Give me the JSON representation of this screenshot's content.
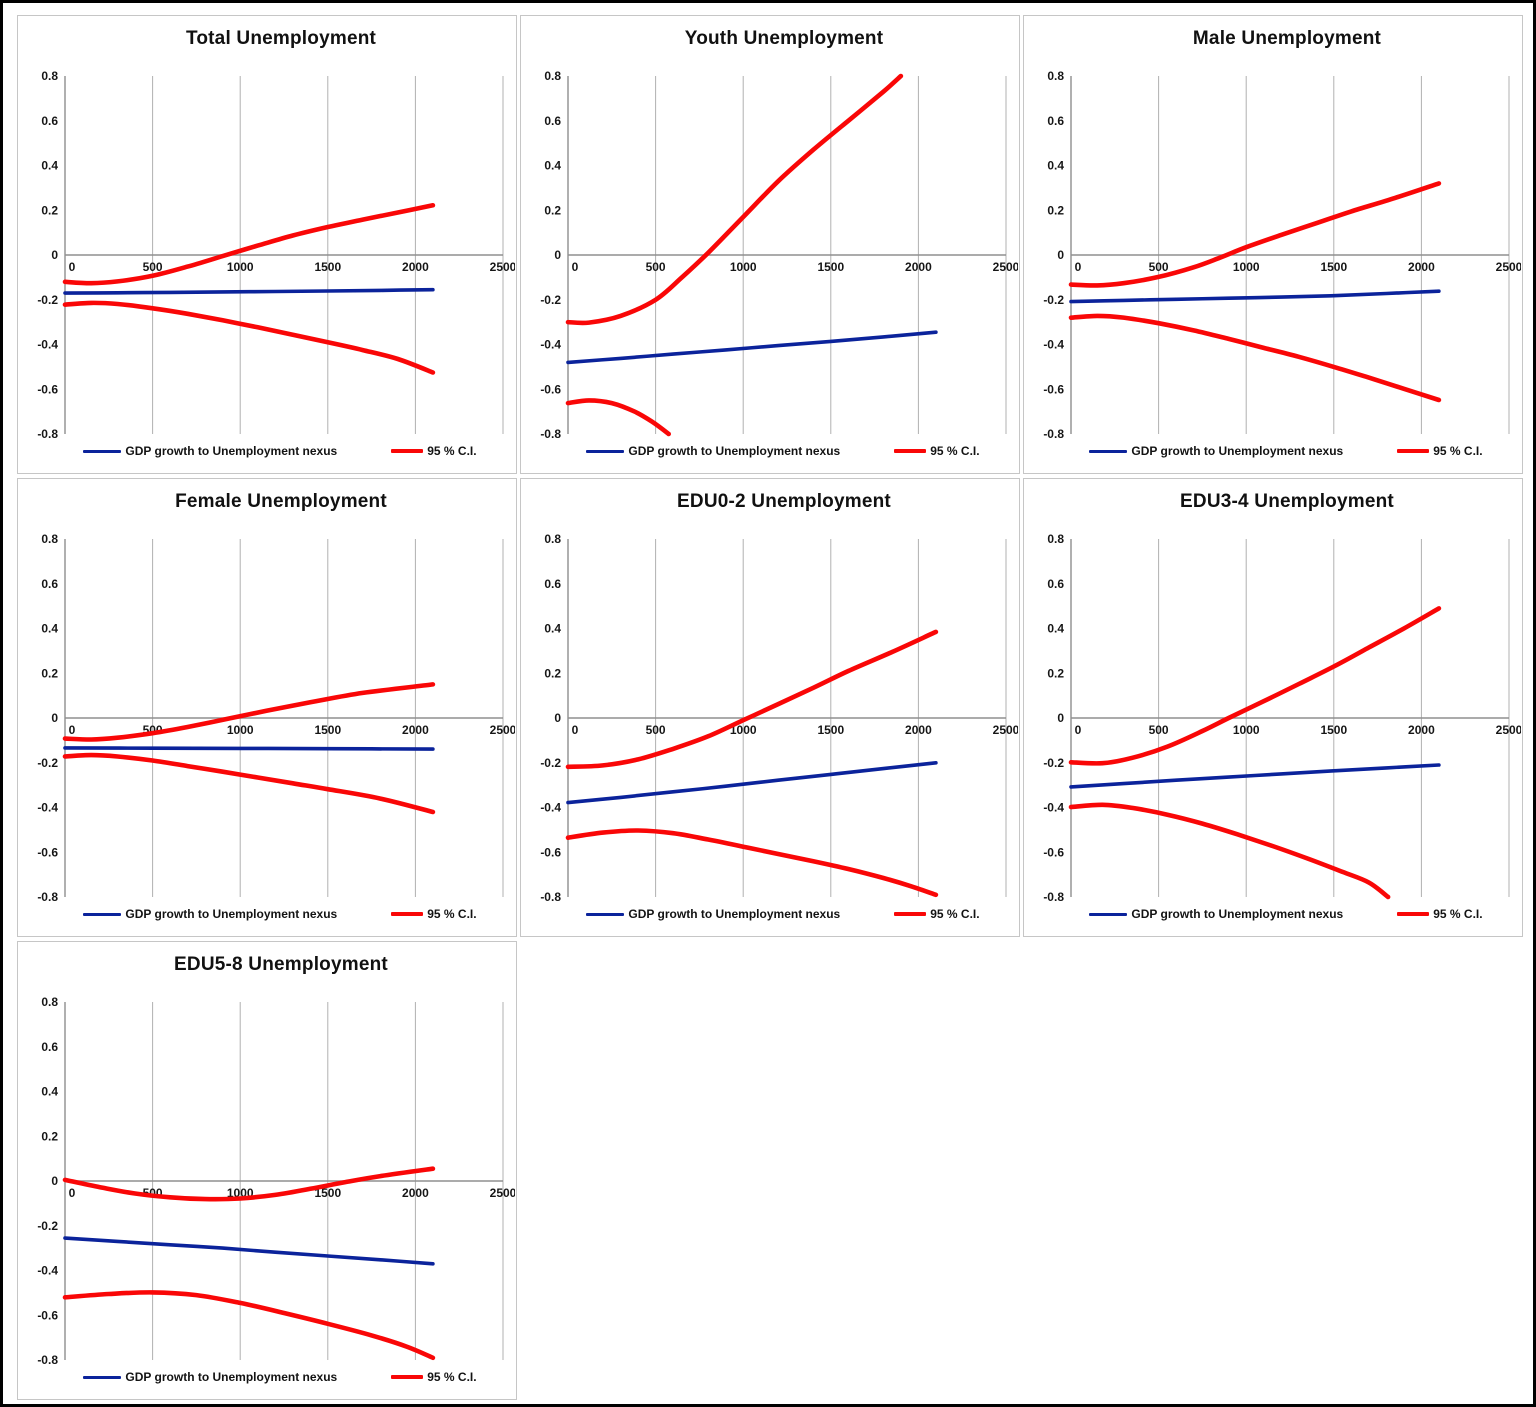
{
  "figure": {
    "legend": {
      "series1": "GDP growth to Unemployment nexus",
      "series2": "95 % C.I."
    },
    "colors": {
      "nexus": "#0b239b",
      "ci": "#f90707",
      "grid": "#b0b0b0",
      "axis": "#8f8f8f"
    },
    "axes": {
      "x_ticks": [
        "0",
        "500",
        "1000",
        "1500",
        "2000",
        "2500"
      ],
      "y_ticks": [
        "0.8",
        "0.6",
        "0.4",
        "0.2",
        "0",
        "-0.2",
        "-0.4",
        "-0.6",
        "-0.8"
      ],
      "xlim": [
        0,
        2500
      ],
      "ylim": [
        -0.8,
        0.8
      ],
      "grid": "vertical"
    }
  },
  "chart_data": [
    {
      "type": "line",
      "title": "Total Unemployment",
      "xlabel": "",
      "ylabel": "",
      "series": [
        {
          "name": "GDP growth to Unemployment nexus",
          "color": "nexus",
          "points": [
            [
              0,
              -0.17
            ],
            [
              300,
              -0.169
            ],
            [
              600,
              -0.167
            ],
            [
              900,
              -0.165
            ],
            [
              1200,
              -0.163
            ],
            [
              1500,
              -0.161
            ],
            [
              1800,
              -0.158
            ],
            [
              2100,
              -0.155
            ]
          ]
        },
        {
          "name": "95 % C.I. upper",
          "color": "ci",
          "points": [
            [
              0,
              -0.12
            ],
            [
              150,
              -0.126
            ],
            [
              300,
              -0.118
            ],
            [
              500,
              -0.093
            ],
            [
              700,
              -0.052
            ],
            [
              900,
              -0.005
            ],
            [
              1100,
              0.042
            ],
            [
              1300,
              0.087
            ],
            [
              1500,
              0.125
            ],
            [
              1700,
              0.158
            ],
            [
              1900,
              0.19
            ],
            [
              2100,
              0.222
            ]
          ]
        },
        {
          "name": "95 % C.I. lower",
          "color": "ci",
          "points": [
            [
              0,
              -0.222
            ],
            [
              150,
              -0.214
            ],
            [
              300,
              -0.219
            ],
            [
              500,
              -0.238
            ],
            [
              700,
              -0.263
            ],
            [
              900,
              -0.292
            ],
            [
              1100,
              -0.323
            ],
            [
              1300,
              -0.356
            ],
            [
              1500,
              -0.39
            ],
            [
              1700,
              -0.425
            ],
            [
              1900,
              -0.465
            ],
            [
              2100,
              -0.525
            ]
          ]
        }
      ]
    },
    {
      "type": "line",
      "title": "Youth Unemployment",
      "xlabel": "",
      "ylabel": "",
      "series": [
        {
          "name": "GDP growth to Unemployment nexus",
          "color": "nexus",
          "points": [
            [
              0,
              -0.48
            ],
            [
              300,
              -0.462
            ],
            [
              600,
              -0.443
            ],
            [
              900,
              -0.424
            ],
            [
              1200,
              -0.405
            ],
            [
              1500,
              -0.386
            ],
            [
              1800,
              -0.366
            ],
            [
              2100,
              -0.345
            ]
          ]
        },
        {
          "name": "95 % C.I. upper",
          "color": "ci",
          "points": [
            [
              0,
              -0.3
            ],
            [
              120,
              -0.302
            ],
            [
              300,
              -0.272
            ],
            [
              500,
              -0.2
            ],
            [
              650,
              -0.1
            ],
            [
              800,
              0.01
            ],
            [
              1000,
              0.17
            ],
            [
              1200,
              0.33
            ],
            [
              1400,
              0.47
            ],
            [
              1600,
              0.6
            ],
            [
              1800,
              0.73
            ],
            [
              1900,
              0.8
            ]
          ]
        },
        {
          "name": "95 % C.I. lower",
          "color": "ci",
          "points": [
            [
              0,
              -0.662
            ],
            [
              120,
              -0.65
            ],
            [
              250,
              -0.662
            ],
            [
              380,
              -0.7
            ],
            [
              480,
              -0.745
            ],
            [
              575,
              -0.8
            ]
          ]
        }
      ]
    },
    {
      "type": "line",
      "title": "Male Unemployment",
      "xlabel": "",
      "ylabel": "",
      "series": [
        {
          "name": "GDP growth to Unemployment nexus",
          "color": "nexus",
          "points": [
            [
              0,
              -0.208
            ],
            [
              300,
              -0.203
            ],
            [
              600,
              -0.198
            ],
            [
              900,
              -0.193
            ],
            [
              1200,
              -0.188
            ],
            [
              1500,
              -0.182
            ],
            [
              1800,
              -0.172
            ],
            [
              2100,
              -0.162
            ]
          ]
        },
        {
          "name": "95 % C.I. upper",
          "color": "ci",
          "points": [
            [
              0,
              -0.132
            ],
            [
              150,
              -0.136
            ],
            [
              300,
              -0.126
            ],
            [
              500,
              -0.098
            ],
            [
              700,
              -0.055
            ],
            [
              850,
              -0.012
            ],
            [
              1000,
              0.035
            ],
            [
              1200,
              0.09
            ],
            [
              1400,
              0.142
            ],
            [
              1600,
              0.195
            ],
            [
              1850,
              0.255
            ],
            [
              2100,
              0.32
            ]
          ]
        },
        {
          "name": "95 % C.I. lower",
          "color": "ci",
          "points": [
            [
              0,
              -0.28
            ],
            [
              150,
              -0.272
            ],
            [
              300,
              -0.28
            ],
            [
              500,
              -0.305
            ],
            [
              700,
              -0.337
            ],
            [
              900,
              -0.375
            ],
            [
              1100,
              -0.415
            ],
            [
              1300,
              -0.455
            ],
            [
              1500,
              -0.5
            ],
            [
              1700,
              -0.548
            ],
            [
              1900,
              -0.598
            ],
            [
              2100,
              -0.648
            ]
          ]
        }
      ]
    },
    {
      "type": "line",
      "title": "Female Unemployment",
      "xlabel": "",
      "ylabel": "",
      "series": [
        {
          "name": "GDP growth to Unemployment nexus",
          "color": "nexus",
          "points": [
            [
              0,
              -0.134
            ],
            [
              500,
              -0.135
            ],
            [
              1000,
              -0.136
            ],
            [
              1500,
              -0.137
            ],
            [
              2100,
              -0.139
            ]
          ]
        },
        {
          "name": "95 % C.I. upper",
          "color": "ci",
          "points": [
            [
              0,
              -0.092
            ],
            [
              150,
              -0.096
            ],
            [
              300,
              -0.088
            ],
            [
              500,
              -0.068
            ],
            [
              700,
              -0.04
            ],
            [
              950,
              0.0
            ],
            [
              1150,
              0.032
            ],
            [
              1400,
              0.07
            ],
            [
              1700,
              0.112
            ],
            [
              2100,
              0.15
            ]
          ]
        },
        {
          "name": "95 % C.I. lower",
          "color": "ci",
          "points": [
            [
              0,
              -0.172
            ],
            [
              150,
              -0.166
            ],
            [
              300,
              -0.172
            ],
            [
              500,
              -0.19
            ],
            [
              700,
              -0.215
            ],
            [
              900,
              -0.24
            ],
            [
              1100,
              -0.266
            ],
            [
              1300,
              -0.292
            ],
            [
              1500,
              -0.318
            ],
            [
              1800,
              -0.36
            ],
            [
              2100,
              -0.42
            ]
          ]
        }
      ]
    },
    {
      "type": "line",
      "title": "EDU0-2 Unemployment",
      "xlabel": "",
      "ylabel": "",
      "series": [
        {
          "name": "GDP growth to Unemployment nexus",
          "color": "nexus",
          "points": [
            [
              0,
              -0.378
            ],
            [
              300,
              -0.355
            ],
            [
              600,
              -0.33
            ],
            [
              900,
              -0.305
            ],
            [
              1200,
              -0.278
            ],
            [
              1500,
              -0.252
            ],
            [
              1800,
              -0.226
            ],
            [
              2100,
              -0.2
            ]
          ]
        },
        {
          "name": "95 % C.I. upper",
          "color": "ci",
          "points": [
            [
              0,
              -0.218
            ],
            [
              200,
              -0.212
            ],
            [
              400,
              -0.185
            ],
            [
              600,
              -0.138
            ],
            [
              800,
              -0.082
            ],
            [
              1000,
              -0.01
            ],
            [
              1200,
              0.062
            ],
            [
              1400,
              0.135
            ],
            [
              1600,
              0.21
            ],
            [
              1850,
              0.295
            ],
            [
              2100,
              0.385
            ]
          ]
        },
        {
          "name": "95 % C.I. lower",
          "color": "ci",
          "points": [
            [
              0,
              -0.535
            ],
            [
              200,
              -0.512
            ],
            [
              400,
              -0.503
            ],
            [
              600,
              -0.515
            ],
            [
              800,
              -0.543
            ],
            [
              1000,
              -0.575
            ],
            [
              1200,
              -0.608
            ],
            [
              1400,
              -0.64
            ],
            [
              1600,
              -0.675
            ],
            [
              1800,
              -0.715
            ],
            [
              1950,
              -0.75
            ],
            [
              2100,
              -0.79
            ]
          ]
        }
      ]
    },
    {
      "type": "line",
      "title": "EDU3-4 Unemployment",
      "xlabel": "",
      "ylabel": "",
      "series": [
        {
          "name": "GDP growth to Unemployment nexus",
          "color": "nexus",
          "points": [
            [
              0,
              -0.308
            ],
            [
              300,
              -0.293
            ],
            [
              600,
              -0.278
            ],
            [
              900,
              -0.264
            ],
            [
              1200,
              -0.25
            ],
            [
              1500,
              -0.236
            ],
            [
              1800,
              -0.223
            ],
            [
              2100,
              -0.21
            ]
          ]
        },
        {
          "name": "95 % C.I. upper",
          "color": "ci",
          "points": [
            [
              0,
              -0.198
            ],
            [
              180,
              -0.202
            ],
            [
              350,
              -0.178
            ],
            [
              550,
              -0.128
            ],
            [
              750,
              -0.058
            ],
            [
              900,
              0.0
            ],
            [
              1100,
              0.075
            ],
            [
              1300,
              0.152
            ],
            [
              1500,
              0.23
            ],
            [
              1700,
              0.315
            ],
            [
              1900,
              0.4
            ],
            [
              2100,
              0.49
            ]
          ]
        },
        {
          "name": "95 % C.I. lower",
          "color": "ci",
          "points": [
            [
              0,
              -0.398
            ],
            [
              180,
              -0.388
            ],
            [
              350,
              -0.402
            ],
            [
              550,
              -0.432
            ],
            [
              750,
              -0.472
            ],
            [
              950,
              -0.52
            ],
            [
              1150,
              -0.572
            ],
            [
              1350,
              -0.628
            ],
            [
              1550,
              -0.688
            ],
            [
              1700,
              -0.735
            ],
            [
              1810,
              -0.8
            ]
          ]
        }
      ]
    },
    {
      "type": "line",
      "title": "EDU5-8 Unemployment",
      "xlabel": "",
      "ylabel": "",
      "series": [
        {
          "name": "GDP growth to Unemployment nexus",
          "color": "nexus",
          "points": [
            [
              0,
              -0.255
            ],
            [
              300,
              -0.27
            ],
            [
              600,
              -0.285
            ],
            [
              900,
              -0.3
            ],
            [
              1200,
              -0.318
            ],
            [
              1500,
              -0.335
            ],
            [
              1800,
              -0.352
            ],
            [
              2100,
              -0.37
            ]
          ]
        },
        {
          "name": "95 % C.I. upper",
          "color": "ci",
          "points": [
            [
              0,
              0.005
            ],
            [
              200,
              -0.028
            ],
            [
              400,
              -0.056
            ],
            [
              600,
              -0.073
            ],
            [
              800,
              -0.081
            ],
            [
              1000,
              -0.078
            ],
            [
              1200,
              -0.062
            ],
            [
              1400,
              -0.035
            ],
            [
              1600,
              -0.005
            ],
            [
              1800,
              0.022
            ],
            [
              2100,
              0.055
            ]
          ]
        },
        {
          "name": "95 % C.I. lower",
          "color": "ci",
          "points": [
            [
              0,
              -0.52
            ],
            [
              250,
              -0.505
            ],
            [
              500,
              -0.498
            ],
            [
              750,
              -0.51
            ],
            [
              1000,
              -0.545
            ],
            [
              1250,
              -0.59
            ],
            [
              1500,
              -0.638
            ],
            [
              1750,
              -0.69
            ],
            [
              1950,
              -0.74
            ],
            [
              2100,
              -0.79
            ]
          ]
        }
      ]
    }
  ]
}
